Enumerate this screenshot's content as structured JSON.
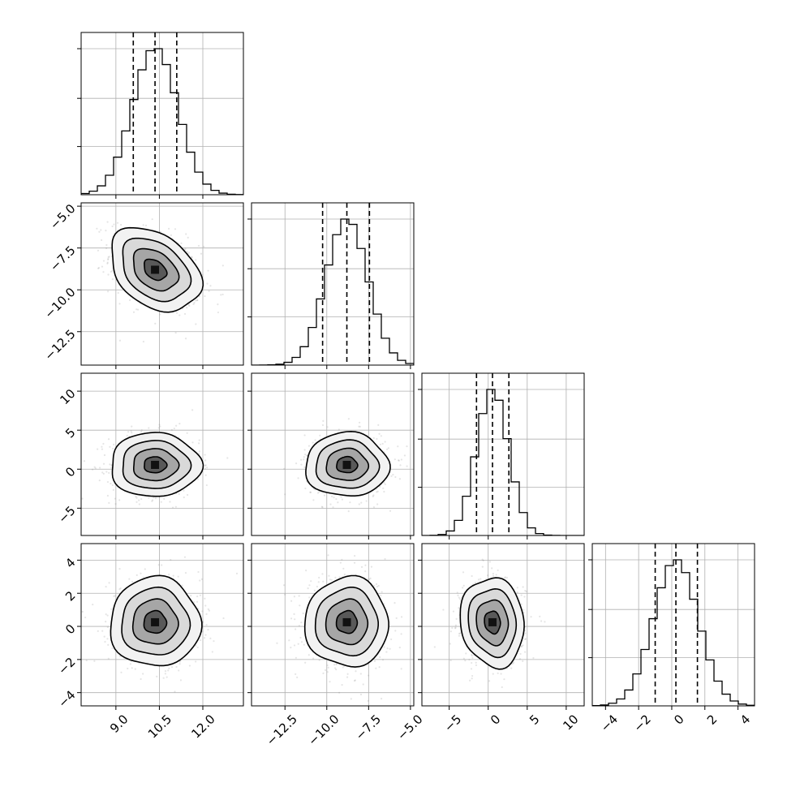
{
  "chart_data": {
    "type": "corner",
    "parameters": [
      {
        "range": [
          7.8,
          13.4
        ],
        "mean": 10.35,
        "sd": 0.78,
        "q": [
          9.6,
          10.35,
          11.1
        ],
        "ticks": [
          9.0,
          10.5,
          12.0
        ],
        "tick_labels": [
          "9.0",
          "10.5",
          "12.0"
        ]
      },
      {
        "range": [
          -14.5,
          -4.8
        ],
        "mean": -8.8,
        "sd": 1.25,
        "q": [
          -10.25,
          -8.8,
          -7.45
        ],
        "ticks": [
          -12.5,
          -10.0,
          -7.5,
          -5.0
        ],
        "tick_labels": [
          "−12.5",
          "−10.0",
          "−7.5",
          "−5.0"
        ]
      },
      {
        "range": [
          -8.5,
          12.3
        ],
        "mean": 0.55,
        "sd": 2.05,
        "q": [
          -1.5,
          0.55,
          2.65
        ],
        "ticks": [
          -5,
          0,
          5,
          10
        ],
        "tick_labels": [
          "−5",
          "0",
          "5",
          "10"
        ]
      },
      {
        "range": [
          -4.8,
          5.0
        ],
        "mean": 0.25,
        "sd": 1.35,
        "q": [
          -1.0,
          0.25,
          1.55
        ],
        "ticks": [
          -4,
          -2,
          0,
          2,
          4
        ],
        "tick_labels": [
          "−4",
          "−2",
          "0",
          "2",
          "4"
        ]
      }
    ],
    "correlations": [
      [
        1.0,
        -0.35,
        0.0,
        0.0
      ],
      [
        -0.35,
        1.0,
        0.0,
        0.0
      ],
      [
        0.0,
        0.0,
        1.0,
        -0.1
      ],
      [
        0.0,
        0.0,
        -0.1,
        1.0
      ]
    ],
    "quantiles": [
      0.16,
      0.5,
      0.84
    ],
    "contour_sigma_levels": [
      0.5,
      1.0,
      1.5,
      2.0
    ],
    "hist_bins": 20,
    "grid": true,
    "colors": {
      "line": "#000000",
      "scatter": "#8a8a8a",
      "grid": "#b0b0b0"
    }
  }
}
